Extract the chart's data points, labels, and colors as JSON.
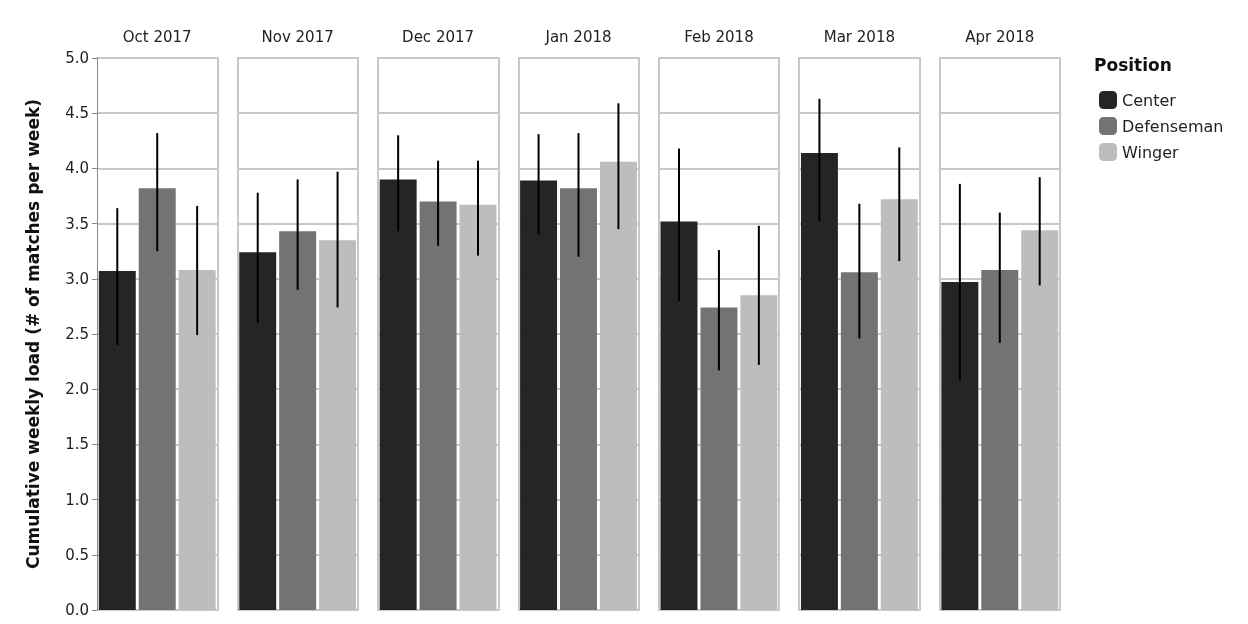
{
  "chart_data": {
    "type": "bar",
    "categories": [
      "Oct 2017",
      "Nov 2017",
      "Dec 2017",
      "Jan 2018",
      "Feb 2018",
      "Mar 2018",
      "Apr 2018"
    ],
    "ylabel": "Cumulative weekly load (# of matches per week)",
    "legend_title": "Position",
    "series": [
      {
        "name": "Center",
        "color": "#252525",
        "values": [
          3.07,
          3.24,
          3.9,
          3.89,
          3.52,
          4.14,
          2.97
        ],
        "errors": [
          [
            2.4,
            3.64
          ],
          [
            2.6,
            3.78
          ],
          [
            3.43,
            4.3
          ],
          [
            3.4,
            4.31
          ],
          [
            2.8,
            4.18
          ],
          [
            3.52,
            4.63
          ],
          [
            2.08,
            3.86
          ]
        ]
      },
      {
        "name": "Defenseman",
        "color": "#737373",
        "values": [
          3.82,
          3.43,
          3.7,
          3.82,
          2.74,
          3.06,
          3.08
        ],
        "errors": [
          [
            3.25,
            4.32
          ],
          [
            2.9,
            3.9
          ],
          [
            3.3,
            4.07
          ],
          [
            3.2,
            4.32
          ],
          [
            2.17,
            3.26
          ],
          [
            2.46,
            3.68
          ],
          [
            2.42,
            3.6
          ]
        ]
      },
      {
        "name": "Winger",
        "color": "#bdbdbd",
        "values": [
          3.08,
          3.35,
          3.67,
          4.06,
          2.85,
          3.72,
          3.44
        ],
        "errors": [
          [
            2.49,
            3.66
          ],
          [
            2.74,
            3.97
          ],
          [
            3.21,
            4.07
          ],
          [
            3.45,
            4.59
          ],
          [
            2.22,
            3.48
          ],
          [
            3.16,
            4.19
          ],
          [
            2.94,
            3.92
          ]
        ]
      }
    ],
    "ylim": [
      0,
      5
    ],
    "yticks": [
      {
        "value": 0,
        "label": "0.0"
      },
      {
        "value": 0.5,
        "label": "0.5"
      },
      {
        "value": 1,
        "label": "1.0"
      },
      {
        "value": 1.5,
        "label": "1.5"
      },
      {
        "value": 2,
        "label": "2.0"
      },
      {
        "value": 2.5,
        "label": "2.5"
      },
      {
        "value": 3,
        "label": "3.0"
      },
      {
        "value": 3.5,
        "label": "3.5"
      },
      {
        "value": 4,
        "label": "4.0"
      },
      {
        "value": 4.5,
        "label": "4.5"
      },
      {
        "value": 5,
        "label": "5.0"
      }
    ],
    "grid": "y",
    "legend": "top right"
  }
}
